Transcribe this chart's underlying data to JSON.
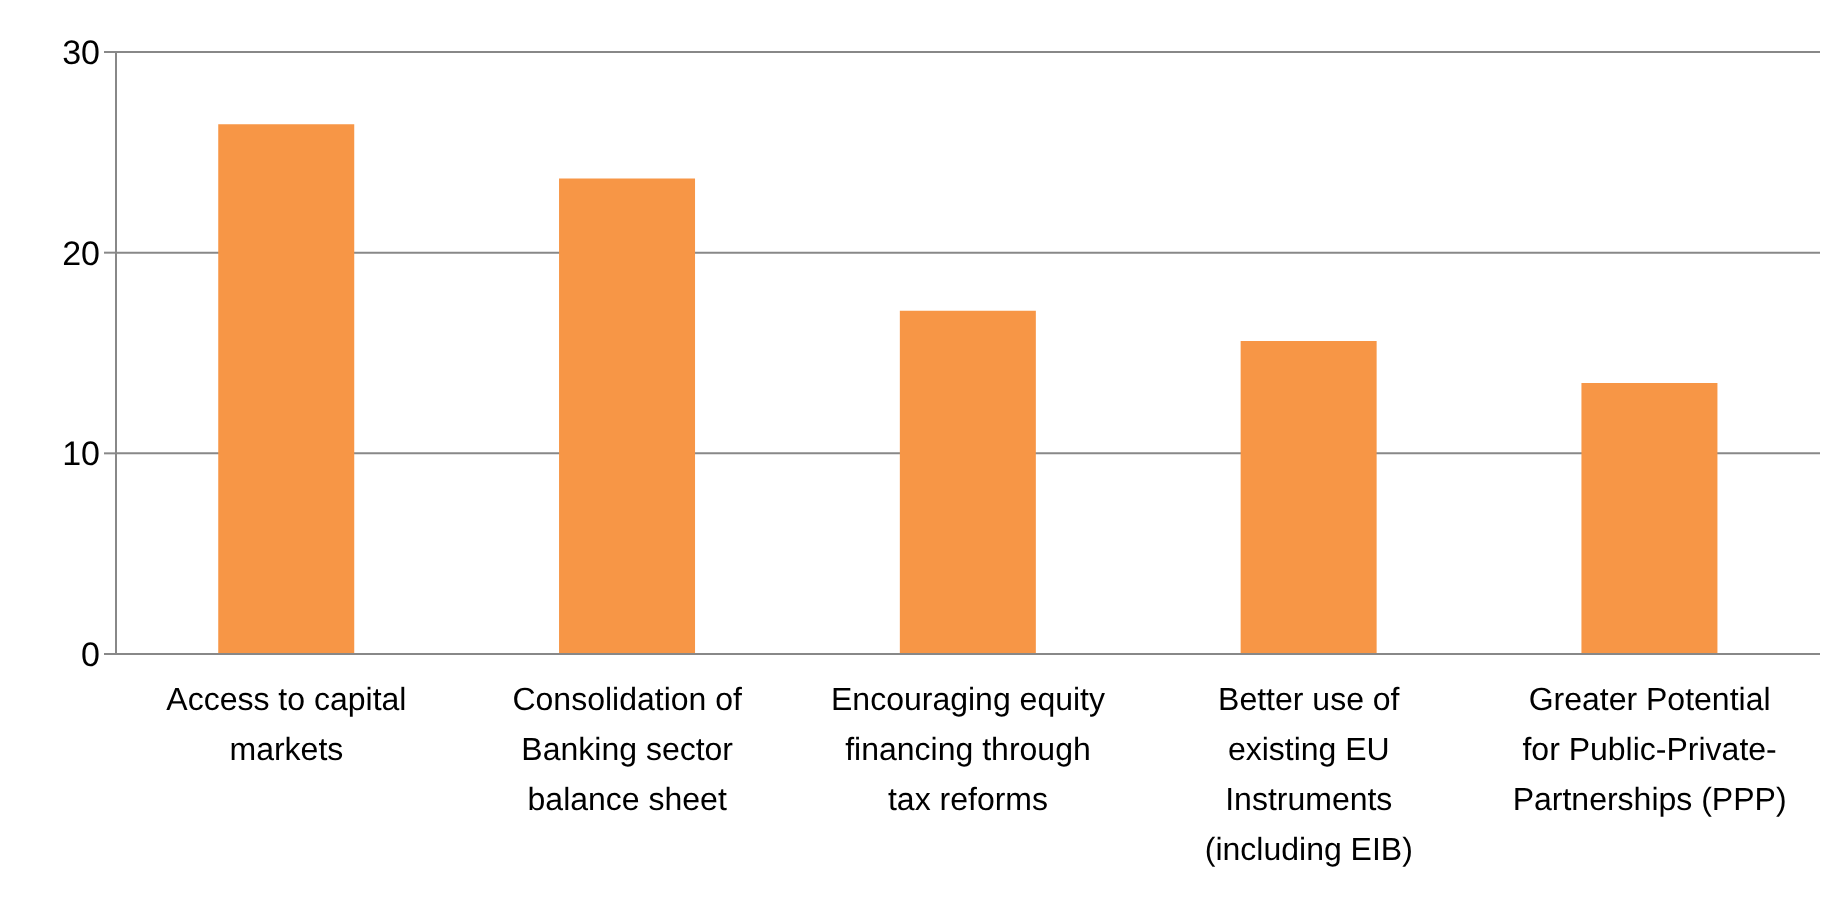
{
  "chart_data": {
    "type": "bar",
    "categories": [
      "Access to capital markets",
      "Consolidation of Banking sector balance sheet",
      "Encouraging equity financing through tax reforms",
      "Better use of existing EU Instruments (including EIB)",
      "Greater Potential for Public-Private-Partnerships (PPP)"
    ],
    "values": [
      26.4,
      23.7,
      17.1,
      15.6,
      13.5
    ],
    "color": "#f79646",
    "ylim": [
      0,
      30
    ],
    "yticks": [
      0,
      10,
      20,
      30
    ],
    "grid": "y"
  }
}
